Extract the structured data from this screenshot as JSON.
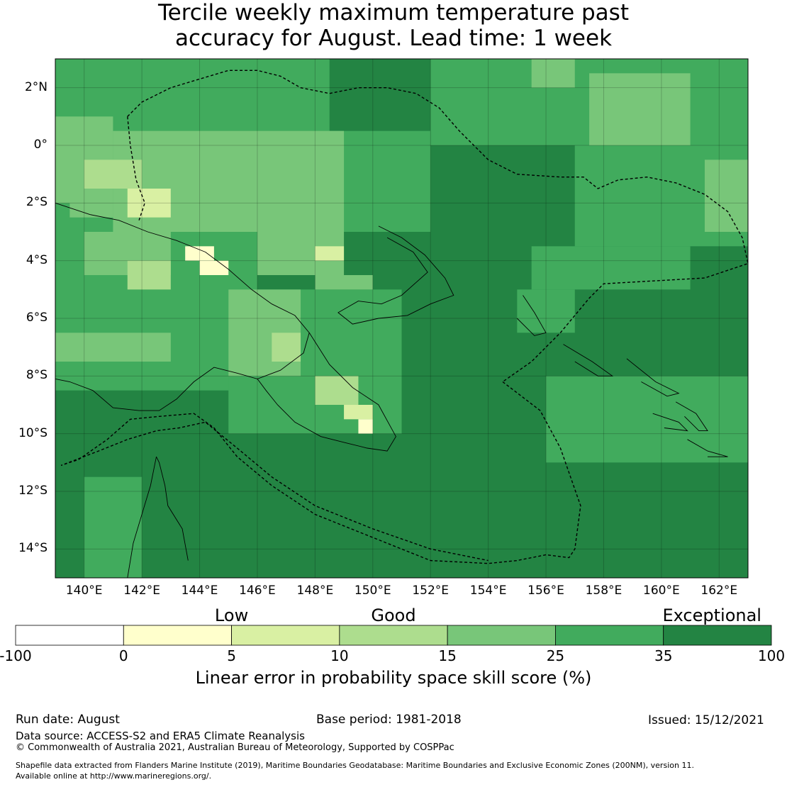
{
  "title_line1": "Tercile weekly maximum temperature past",
  "title_line2": "accuracy for August. Lead time: 1 week",
  "map": {
    "lon_range": [
      139,
      163
    ],
    "lat_range": [
      -15,
      3
    ],
    "x_ticks": [
      {
        "lon": 140,
        "label": "140°E"
      },
      {
        "lon": 142,
        "label": "142°E"
      },
      {
        "lon": 144,
        "label": "144°E"
      },
      {
        "lon": 146,
        "label": "146°E"
      },
      {
        "lon": 148,
        "label": "148°E"
      },
      {
        "lon": 150,
        "label": "150°E"
      },
      {
        "lon": 152,
        "label": "152°E"
      },
      {
        "lon": 154,
        "label": "154°E"
      },
      {
        "lon": 156,
        "label": "156°E"
      },
      {
        "lon": 158,
        "label": "158°E"
      },
      {
        "lon": 160,
        "label": "160°E"
      },
      {
        "lon": 162,
        "label": "162°E"
      }
    ],
    "y_ticks": [
      {
        "lat": 2,
        "label": "2°N"
      },
      {
        "lat": 0,
        "label": "0°"
      },
      {
        "lat": -2,
        "label": "2°S"
      },
      {
        "lat": -4,
        "label": "4°S"
      },
      {
        "lat": -6,
        "label": "6°S"
      },
      {
        "lat": -8,
        "label": "8°S"
      },
      {
        "lat": -10,
        "label": "10°S"
      },
      {
        "lat": -12,
        "label": "12°S"
      },
      {
        "lat": -14,
        "label": "14°S"
      }
    ],
    "skill_regions": [
      {
        "cls": 6,
        "lon": [
          139,
          163
        ],
        "lat": [
          -15,
          3
        ]
      },
      {
        "cls": 5,
        "lon": [
          139,
          148.5
        ],
        "lat": [
          -4.5,
          3
        ]
      },
      {
        "cls": 5,
        "lon": [
          139,
          146
        ],
        "lat": [
          -8.5,
          -4.5
        ]
      },
      {
        "cls": 5,
        "lon": [
          145,
          151
        ],
        "lat": [
          -10,
          -5
        ]
      },
      {
        "cls": 5,
        "lon": [
          148.5,
          152
        ],
        "lat": [
          -3,
          0.5
        ]
      },
      {
        "cls": 5,
        "lon": [
          152,
          163
        ],
        "lat": [
          0,
          3
        ]
      },
      {
        "cls": 5,
        "lon": [
          157,
          163
        ],
        "lat": [
          -3.5,
          0
        ]
      },
      {
        "cls": 5,
        "lon": [
          155.5,
          161
        ],
        "lat": [
          -5,
          -3.5
        ]
      },
      {
        "cls": 5,
        "lon": [
          156,
          163
        ],
        "lat": [
          -11,
          -8
        ]
      },
      {
        "cls": 5,
        "lon": [
          140,
          142
        ],
        "lat": [
          -15,
          -11.5
        ]
      },
      {
        "cls": 5,
        "lon": [
          155,
          157
        ],
        "lat": [
          -6.5,
          -5
        ]
      },
      {
        "cls": 4,
        "lon": [
          141,
          149
        ],
        "lat": [
          -3,
          0.5
        ]
      },
      {
        "cls": 4,
        "lon": [
          139,
          141
        ],
        "lat": [
          -2,
          1
        ]
      },
      {
        "cls": 4,
        "lon": [
          157.5,
          161
        ],
        "lat": [
          0,
          2.5
        ]
      },
      {
        "cls": 4,
        "lon": [
          161.5,
          163
        ],
        "lat": [
          -3,
          -0.5
        ]
      },
      {
        "cls": 4,
        "lon": [
          146,
          149
        ],
        "lat": [
          -4.5,
          -3
        ]
      },
      {
        "cls": 4,
        "lon": [
          145,
          147.5
        ],
        "lat": [
          -8,
          -5
        ]
      },
      {
        "cls": 4,
        "lon": [
          140,
          143
        ],
        "lat": [
          -4.5,
          -3
        ]
      },
      {
        "cls": 4,
        "lon": [
          139,
          143
        ],
        "lat": [
          -7.5,
          -6.5
        ]
      },
      {
        "cls": 4,
        "lon": [
          148,
          150
        ],
        "lat": [
          -5,
          -4.5
        ]
      },
      {
        "cls": 4,
        "lon": [
          155.5,
          157
        ],
        "lat": [
          2,
          3
        ]
      },
      {
        "cls": 4,
        "lon": [
          139.5,
          141
        ],
        "lat": [
          -2.5,
          -2
        ]
      },
      {
        "cls": 3,
        "lon": [
          140,
          142
        ],
        "lat": [
          -1.5,
          -0.5
        ]
      },
      {
        "cls": 3,
        "lon": [
          141.5,
          143
        ],
        "lat": [
          -5,
          -4
        ]
      },
      {
        "cls": 3,
        "lon": [
          146.5,
          147.5
        ],
        "lat": [
          -7.5,
          -6.5
        ]
      },
      {
        "cls": 3,
        "lon": [
          148,
          149.5
        ],
        "lat": [
          -9,
          -8
        ]
      },
      {
        "cls": 2,
        "lon": [
          141.5,
          143
        ],
        "lat": [
          -2.5,
          -1.5
        ]
      },
      {
        "cls": 2,
        "lon": [
          148,
          149
        ],
        "lat": [
          -4,
          -3.5
        ]
      },
      {
        "cls": 2,
        "lon": [
          149,
          150
        ],
        "lat": [
          -9.5,
          -9
        ]
      },
      {
        "cls": 1,
        "lon": [
          143.5,
          144.5
        ],
        "lat": [
          -4,
          -3.5
        ]
      },
      {
        "cls": 1,
        "lon": [
          144,
          145
        ],
        "lat": [
          -4.5,
          -4
        ]
      },
      {
        "cls": 1,
        "lon": [
          149.5,
          150
        ],
        "lat": [
          -10,
          -9.5
        ]
      }
    ],
    "eez_boundaries": [
      [
        [
          141.5,
          1
        ],
        [
          142,
          1.5
        ],
        [
          143,
          2
        ],
        [
          144,
          2.3
        ],
        [
          145,
          2.6
        ],
        [
          146,
          2.6
        ],
        [
          146.8,
          2.4
        ],
        [
          147.5,
          2
        ],
        [
          148.5,
          1.8
        ],
        [
          149.5,
          2
        ],
        [
          150.5,
          2
        ],
        [
          151.5,
          1.8
        ],
        [
          152.3,
          1.3
        ],
        [
          153,
          0.5
        ],
        [
          154,
          -0.5
        ],
        [
          155,
          -1
        ],
        [
          156.5,
          -1.1
        ],
        [
          157.3,
          -1.1
        ],
        [
          157.8,
          -1.5
        ],
        [
          158.5,
          -1.2
        ],
        [
          159.5,
          -1.1
        ],
        [
          160.5,
          -1.3
        ],
        [
          161.5,
          -1.7
        ],
        [
          162.3,
          -2.3
        ],
        [
          162.8,
          -3.2
        ],
        [
          163,
          -4.1
        ],
        [
          161.5,
          -4.6
        ],
        [
          158,
          -4.8
        ],
        [
          157.5,
          -5.3
        ],
        [
          156.5,
          -6.5
        ],
        [
          155.5,
          -7.5
        ],
        [
          154.5,
          -8.2
        ]
      ],
      [
        [
          154.5,
          -8.2
        ],
        [
          155.8,
          -9.2
        ],
        [
          156.5,
          -10.5
        ],
        [
          157.2,
          -12.5
        ],
        [
          157,
          -14
        ],
        [
          156.8,
          -14.3
        ],
        [
          156,
          -14.2
        ],
        [
          155,
          -14.4
        ],
        [
          154,
          -14.5
        ],
        [
          152,
          -14.4
        ],
        [
          150,
          -13.6
        ],
        [
          148,
          -12.8
        ],
        [
          146.5,
          -11.8
        ],
        [
          145.3,
          -10.8
        ],
        [
          144.5,
          -9.8
        ],
        [
          143.8,
          -9.3
        ],
        [
          142.6,
          -9.4
        ],
        [
          141.6,
          -9.5
        ],
        [
          140.8,
          -10.2
        ],
        [
          139.8,
          -10.9
        ],
        [
          139.2,
          -11.1
        ],
        [
          140.5,
          -10.6
        ],
        [
          141.5,
          -10.2
        ],
        [
          142.5,
          -9.9
        ],
        [
          143.3,
          -9.8
        ],
        [
          144.2,
          -9.6
        ],
        [
          145.3,
          -10.5
        ],
        [
          146.5,
          -11.5
        ],
        [
          148,
          -12.5
        ],
        [
          150,
          -13.3
        ],
        [
          152,
          -14
        ],
        [
          154,
          -14.4
        ]
      ],
      [
        [
          141.5,
          1
        ],
        [
          141.6,
          0
        ],
        [
          141.8,
          -1.2
        ],
        [
          142.1,
          -2
        ],
        [
          141.9,
          -2.6
        ]
      ]
    ],
    "coastlines": [
      [
        [
          139,
          -2.0
        ],
        [
          140.2,
          -2.4
        ],
        [
          141.2,
          -2.6
        ],
        [
          142.2,
          -3.0
        ],
        [
          143.2,
          -3.3
        ],
        [
          144.2,
          -3.7
        ],
        [
          145.0,
          -4.3
        ],
        [
          145.8,
          -5.0
        ],
        [
          146.5,
          -5.5
        ],
        [
          147.3,
          -5.9
        ],
        [
          147.8,
          -6.5
        ],
        [
          147.6,
          -7.2
        ],
        [
          146.8,
          -7.8
        ],
        [
          146.0,
          -8.1
        ],
        [
          145.3,
          -7.9
        ],
        [
          144.5,
          -7.7
        ],
        [
          143.8,
          -8.2
        ],
        [
          143.2,
          -8.8
        ],
        [
          142.6,
          -9.2
        ],
        [
          141.9,
          -9.2
        ],
        [
          141.0,
          -9.1
        ],
        [
          140.3,
          -8.5
        ],
        [
          139.5,
          -8.2
        ],
        [
          139.0,
          -8.1
        ]
      ],
      [
        [
          147.8,
          -6.5
        ],
        [
          148.5,
          -7.6
        ],
        [
          149.3,
          -8.4
        ],
        [
          150.2,
          -9.0
        ],
        [
          150.8,
          -10.1
        ],
        [
          150.5,
          -10.6
        ],
        [
          149.8,
          -10.5
        ],
        [
          149.0,
          -10.3
        ],
        [
          148.2,
          -10.1
        ],
        [
          147.3,
          -9.6
        ],
        [
          146.7,
          -9.0
        ],
        [
          146.3,
          -8.5
        ],
        [
          146.0,
          -8.1
        ]
      ],
      [
        [
          142.5,
          -10.8
        ],
        [
          142.3,
          -11.8
        ],
        [
          142.0,
          -12.8
        ],
        [
          141.7,
          -13.8
        ],
        [
          141.5,
          -15.0
        ]
      ],
      [
        [
          143.6,
          -14.4
        ],
        [
          143.4,
          -13.3
        ],
        [
          142.9,
          -12.5
        ],
        [
          142.8,
          -11.8
        ],
        [
          142.6,
          -11.0
        ],
        [
          142.5,
          -10.8
        ]
      ],
      [
        [
          150.2,
          -2.8
        ],
        [
          151.0,
          -3.2
        ],
        [
          151.8,
          -3.8
        ],
        [
          152.5,
          -4.6
        ],
        [
          152.8,
          -5.2
        ],
        [
          152.0,
          -5.5
        ],
        [
          151.2,
          -5.9
        ],
        [
          150.2,
          -6.0
        ],
        [
          149.3,
          -6.2
        ],
        [
          148.8,
          -5.8
        ],
        [
          149.5,
          -5.4
        ],
        [
          150.3,
          -5.5
        ],
        [
          151.0,
          -5.2
        ],
        [
          151.9,
          -4.4
        ],
        [
          151.4,
          -3.7
        ],
        [
          150.5,
          -3.2
        ]
      ],
      [
        [
          155.2,
          -5.2
        ],
        [
          155.6,
          -5.8
        ],
        [
          156.0,
          -6.5
        ],
        [
          155.6,
          -6.6
        ],
        [
          155.0,
          -6.0
        ]
      ],
      [
        [
          156.6,
          -6.9
        ],
        [
          157.6,
          -7.5
        ],
        [
          158.3,
          -8.0
        ],
        [
          157.8,
          -8.0
        ],
        [
          157.0,
          -7.5
        ]
      ],
      [
        [
          158.8,
          -7.4
        ],
        [
          159.8,
          -8.2
        ],
        [
          160.6,
          -8.6
        ],
        [
          160.2,
          -8.7
        ],
        [
          159.3,
          -8.2
        ]
      ],
      [
        [
          159.7,
          -9.3
        ],
        [
          160.6,
          -9.6
        ],
        [
          160.9,
          -9.9
        ],
        [
          160.1,
          -9.8
        ]
      ],
      [
        [
          160.9,
          -10.2
        ],
        [
          161.6,
          -10.6
        ],
        [
          162.3,
          -10.8
        ],
        [
          161.6,
          -10.8
        ]
      ],
      [
        [
          160.5,
          -8.9
        ],
        [
          161.2,
          -9.3
        ],
        [
          161.6,
          -9.9
        ],
        [
          161.3,
          -9.9
        ],
        [
          160.8,
          -9.4
        ]
      ]
    ]
  },
  "colorbar": {
    "categories": [
      {
        "label": "Low",
        "at": 2
      },
      {
        "label": "Good",
        "at": 3.5
      },
      {
        "label": "Exceptional",
        "at": 6.45
      }
    ],
    "bins": [
      {
        "from": -100,
        "to": 0,
        "color": "#ffffff"
      },
      {
        "from": 0,
        "to": 5,
        "color": "#ffffcc"
      },
      {
        "from": 5,
        "to": 10,
        "color": "#d9f0a3"
      },
      {
        "from": 10,
        "to": 15,
        "color": "#addd8e"
      },
      {
        "from": 15,
        "to": 25,
        "color": "#78c679"
      },
      {
        "from": 25,
        "to": 35,
        "color": "#41ab5d"
      },
      {
        "from": 35,
        "to": 100,
        "color": "#238443"
      }
    ],
    "tick_labels": [
      "-100",
      "0",
      "5",
      "10",
      "15",
      "25",
      "35",
      "100"
    ],
    "label": "Linear error in probability space skill score (%)"
  },
  "footer": {
    "run_date": "Run date: August",
    "base_period": "Base period: 1981-2018",
    "issued": "Issued: 15/12/2021",
    "data_source": "Data source: ACCESS-S2 and ERA5 Climate Reanalysis",
    "copyright": "© Commonwealth of Australia 2021, Australian Bureau of Meteorology, Supported by COSPPac",
    "shapefile_line1": "Shapefile data extracted from Flanders Marine Institute (2019), Maritime Boundaries Geodatabase: Maritime Boundaries and Exclusive Economic Zones (200NM), version 11.",
    "shapefile_line2": "Available online at http://www.marineregions.org/."
  }
}
